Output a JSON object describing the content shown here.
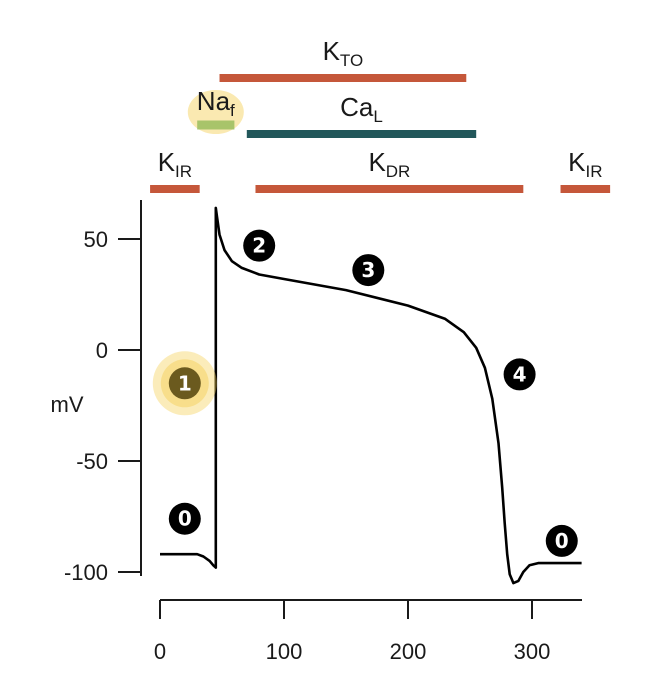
{
  "chart_data": {
    "type": "line",
    "title": "",
    "xlabel": "",
    "ylabel": "mV",
    "xlim": [
      0,
      340
    ],
    "ylim": [
      -105,
      65
    ],
    "x_ticks": [
      0,
      100,
      200,
      300
    ],
    "y_ticks": [
      50,
      0,
      -50,
      -100
    ],
    "x_tick_labels": [
      "0",
      "100",
      "200",
      "300"
    ],
    "y_tick_labels": [
      "50",
      "0",
      "-50",
      "-100"
    ],
    "grid": false,
    "series": [
      {
        "color": "#000000",
        "points": [
          [
            0,
            -92
          ],
          [
            30,
            -92
          ],
          [
            35,
            -93
          ],
          [
            40,
            -95
          ],
          [
            43,
            -97
          ],
          [
            45,
            -98
          ],
          [
            45,
            64
          ],
          [
            46,
            60
          ],
          [
            48,
            52
          ],
          [
            52,
            45
          ],
          [
            58,
            40
          ],
          [
            66,
            37
          ],
          [
            80,
            34
          ],
          [
            100,
            32
          ],
          [
            150,
            27
          ],
          [
            200,
            20
          ],
          [
            230,
            14
          ],
          [
            245,
            8
          ],
          [
            255,
            1
          ],
          [
            262,
            -8
          ],
          [
            268,
            -22
          ],
          [
            273,
            -42
          ],
          [
            276,
            -62
          ],
          [
            278,
            -78
          ],
          [
            280,
            -92
          ],
          [
            282,
            -101
          ],
          [
            285,
            -105
          ],
          [
            289,
            -104
          ],
          [
            293,
            -100
          ],
          [
            298,
            -97
          ],
          [
            305,
            -96
          ],
          [
            340,
            -96
          ]
        ]
      }
    ],
    "channels": [
      {
        "name": "K",
        "sub": "TO",
        "color": "#c5573a",
        "start": 48,
        "end": 247
      },
      {
        "name": "Na",
        "sub": "f",
        "color": "#a8c46a",
        "start": 30,
        "end": 60,
        "highlight": "#f4cf52"
      },
      {
        "name": "Ca",
        "sub": "L",
        "color": "#22575a",
        "start": 70,
        "end": 255
      },
      {
        "name": "K",
        "sub": "IR",
        "color": "#c5573a",
        "start": -8,
        "end": 32
      },
      {
        "name": "K",
        "sub": "DR",
        "color": "#c5573a",
        "start": 77,
        "end": 293
      },
      {
        "name": "K",
        "sub": "IR",
        "color": "#c5573a",
        "start": 323,
        "end": 363
      }
    ],
    "phase_markers": [
      {
        "label": "0",
        "x": 20,
        "y": -76
      },
      {
        "label": "1",
        "x": 20,
        "y": -15,
        "highlight": true
      },
      {
        "label": "2",
        "x": 80,
        "y": 47
      },
      {
        "label": "3",
        "x": 168,
        "y": 36
      },
      {
        "label": "4",
        "x": 290,
        "y": -11
      },
      {
        "label": "0",
        "x": 324,
        "y": -86
      }
    ]
  }
}
